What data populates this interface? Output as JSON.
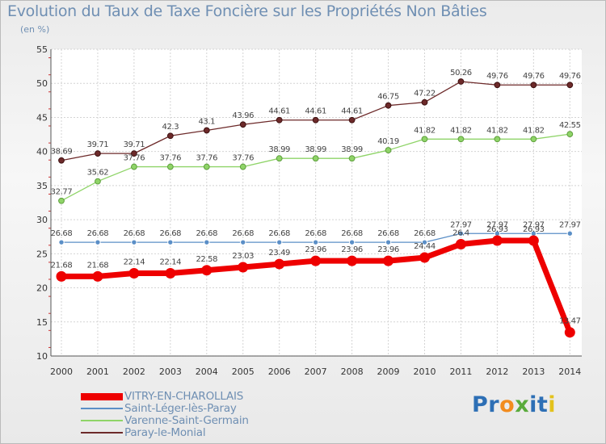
{
  "chart_data": {
    "type": "line",
    "title": "Evolution du Taux de Taxe Foncière sur les Propriétés Non Bâties",
    "subtitle": "(en %)",
    "x": [
      "2000",
      "2001",
      "2002",
      "2003",
      "2004",
      "2005",
      "2006",
      "2007",
      "2008",
      "2009",
      "2010",
      "2011",
      "2012",
      "2013",
      "2014"
    ],
    "ylim": [
      10,
      55
    ],
    "yticks": [
      10,
      15,
      20,
      25,
      30,
      35,
      40,
      45,
      50,
      55
    ],
    "grid": true,
    "legend_position": "bottom-left",
    "series": [
      {
        "name": "VITRY-EN-CHAROLLAIS",
        "color": "#ee0000",
        "values": [
          21.68,
          21.68,
          22.14,
          22.14,
          22.58,
          23.03,
          23.49,
          23.96,
          23.96,
          23.96,
          24.44,
          26.4,
          26.93,
          26.93,
          13.47
        ],
        "labels": [
          "21.68",
          "21.68",
          "22.14",
          "22.14",
          "22.58",
          "23.03",
          "23.49",
          "23.96",
          "23.96",
          "23.96",
          "24.44",
          "26.4",
          "26.93",
          "26.93",
          "13.47"
        ]
      },
      {
        "name": "Saint-Léger-lès-Paray",
        "color": "#5b8fc7",
        "values": [
          26.68,
          26.68,
          26.68,
          26.68,
          26.68,
          26.68,
          26.68,
          26.68,
          26.68,
          26.68,
          26.68,
          27.97,
          27.97,
          27.97,
          27.97
        ],
        "labels": [
          "26.68",
          "26.68",
          "26.68",
          "26.68",
          "26.68",
          "26.68",
          "26.68",
          "26.68",
          "26.68",
          "26.68",
          "26.68",
          "27.97",
          "27.97",
          "27.97",
          "27.97"
        ]
      },
      {
        "name": "Varenne-Saint-Germain",
        "color": "#8fd468",
        "values": [
          32.77,
          35.62,
          37.76,
          37.76,
          37.76,
          37.76,
          38.99,
          38.99,
          38.99,
          40.19,
          41.82,
          41.82,
          41.82,
          41.82,
          42.55
        ],
        "labels": [
          "32.77",
          "35.62",
          "37.76",
          "37.76",
          "37.76",
          "37.76",
          "38.99",
          "38.99",
          "38.99",
          "40.19",
          "41.82",
          "41.82",
          "41.82",
          "41.82",
          "42.55"
        ]
      },
      {
        "name": "Paray-le-Monial",
        "color": "#6d2a2a",
        "values": [
          38.69,
          39.71,
          39.71,
          42.3,
          43.1,
          43.96,
          44.61,
          44.61,
          44.61,
          46.75,
          47.22,
          50.26,
          49.76,
          49.76,
          49.76
        ],
        "labels": [
          "38.69",
          "39.71",
          "39.71",
          "42.3",
          "43.1",
          "43.96",
          "44.61",
          "44.61",
          "44.61",
          "46.75",
          "47.22",
          "50.26",
          "49.76",
          "49.76",
          "49.76"
        ]
      }
    ]
  },
  "logo": {
    "text": "Proxiti",
    "letters": [
      "P",
      "r",
      "o",
      "x",
      "i",
      "t",
      "i"
    ],
    "colors": [
      "#2d6fb5",
      "#2d6fb5",
      "#f28c1f",
      "#5aab3c",
      "#2d6fb5",
      "#2d6fb5",
      "#e3c21c"
    ]
  }
}
